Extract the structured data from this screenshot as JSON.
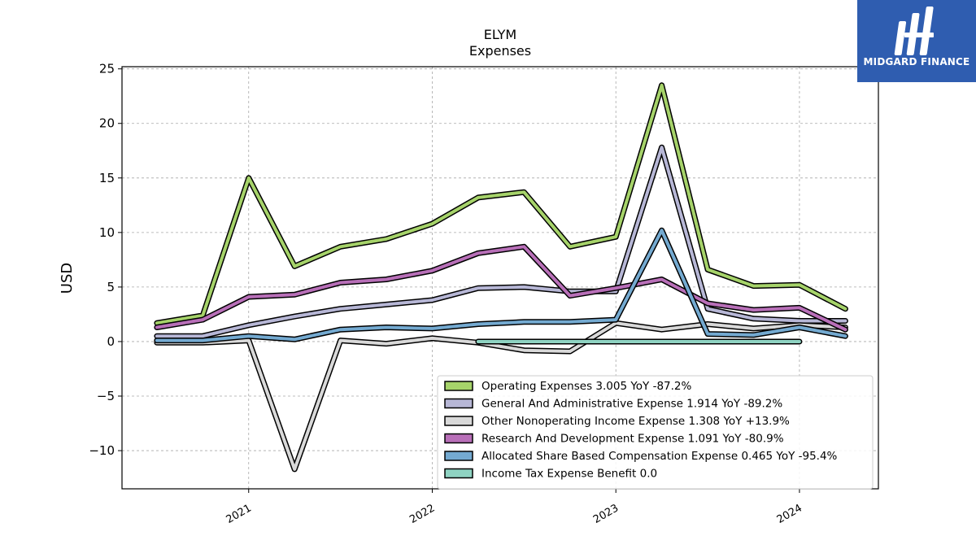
{
  "chart_data": {
    "type": "line",
    "title": "ELYM",
    "subtitle": "Expenses",
    "ylabel": "USD",
    "xlabel": "",
    "ylim": [
      -13.5,
      25.2
    ],
    "xlim": [
      2020.31,
      2024.43
    ],
    "yticks": [
      -10,
      -5,
      0,
      5,
      10,
      15,
      20,
      25
    ],
    "ytick_labels": [
      "−10",
      "−5",
      "0",
      "5",
      "10",
      "15",
      "20",
      "25"
    ],
    "xticks": [
      2021,
      2022,
      2023,
      2024
    ],
    "xtick_labels": [
      "2021",
      "2022",
      "2023",
      "2024"
    ],
    "grid": true,
    "legend_position": "lower-right",
    "series": [
      {
        "name": "Operating Expenses  3.005 YoY -87.2%",
        "color": "#a6d36a",
        "x": [
          2020.5,
          2020.75,
          2021.0,
          2021.25,
          2021.5,
          2021.75,
          2022.0,
          2022.25,
          2022.5,
          2022.75,
          2023.0,
          2023.25,
          2023.5,
          2023.75,
          2024.0,
          2024.25
        ],
        "y": [
          1.7,
          2.4,
          15.0,
          6.9,
          8.7,
          9.4,
          10.8,
          13.2,
          13.7,
          8.7,
          9.6,
          23.5,
          6.6,
          5.1,
          5.2,
          3.0
        ]
      },
      {
        "name": "General And Administrative Expense  1.914 YoY -89.2%",
        "color": "#b7b7d6",
        "x": [
          2020.5,
          2020.75,
          2021.0,
          2021.25,
          2021.5,
          2021.75,
          2022.0,
          2022.25,
          2022.5,
          2022.75,
          2023.0,
          2023.25,
          2023.5,
          2023.75,
          2024.0,
          2024.25
        ],
        "y": [
          0.5,
          0.5,
          1.5,
          2.3,
          3.0,
          3.4,
          3.8,
          4.9,
          5.0,
          4.6,
          4.6,
          17.8,
          3.0,
          2.1,
          1.9,
          1.9
        ]
      },
      {
        "name": "Other Nonoperating Income Expense  1.308 YoY +13.9%",
        "color": "#d9d9d9",
        "x": [
          2020.5,
          2020.75,
          2021.0,
          2021.25,
          2021.5,
          2021.75,
          2022.0,
          2022.25,
          2022.5,
          2022.75,
          2023.0,
          2023.25,
          2023.5,
          2023.75,
          2024.0,
          2024.25
        ],
        "y": [
          -0.1,
          -0.1,
          0.1,
          -11.7,
          0.1,
          -0.2,
          0.3,
          -0.1,
          -0.8,
          -0.9,
          1.7,
          1.1,
          1.6,
          1.2,
          1.5,
          1.3
        ]
      },
      {
        "name": "Research And Development Expense  1.091 YoY -80.9%",
        "color": "#b86fb8",
        "x": [
          2020.5,
          2020.75,
          2021.0,
          2021.25,
          2021.5,
          2021.75,
          2022.0,
          2022.25,
          2022.5,
          2022.75,
          2023.0,
          2023.25,
          2023.5,
          2023.75,
          2024.0,
          2024.25
        ],
        "y": [
          1.3,
          2.0,
          4.1,
          4.3,
          5.4,
          5.7,
          6.5,
          8.1,
          8.7,
          4.2,
          4.9,
          5.7,
          3.5,
          2.9,
          3.1,
          1.1
        ]
      },
      {
        "name": "Allocated Share Based Compensation Expense  0.465 YoY -95.4%",
        "color": "#74aad1",
        "x": [
          2020.5,
          2020.75,
          2021.0,
          2021.25,
          2021.5,
          2021.75,
          2022.0,
          2022.25,
          2022.5,
          2022.75,
          2023.0,
          2023.25,
          2023.5,
          2023.75,
          2024.0,
          2024.25
        ],
        "y": [
          0.1,
          0.1,
          0.5,
          0.2,
          1.1,
          1.3,
          1.2,
          1.6,
          1.8,
          1.8,
          2.0,
          10.2,
          0.7,
          0.6,
          1.3,
          0.5
        ]
      },
      {
        "name": "Income Tax Expense Benefit  0.0",
        "color": "#8fd3c2",
        "x": [
          2022.25,
          2022.5,
          2022.75,
          2023.0,
          2023.25,
          2023.5,
          2023.75,
          2024.0
        ],
        "y": [
          0,
          0,
          0,
          0,
          0,
          0,
          0,
          0
        ]
      }
    ]
  },
  "logo": {
    "text": "MIDGARD FINANCE",
    "background": "#2f5db0"
  }
}
